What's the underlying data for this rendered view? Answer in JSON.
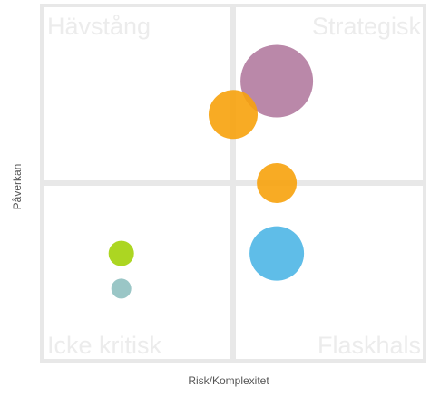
{
  "chart_data": {
    "type": "scatter",
    "subtype": "bubble-quadrant",
    "xlabel": "Risk/Komplexitet",
    "ylabel": "Påverkan",
    "xlim": [
      0,
      100
    ],
    "ylim": [
      0,
      100
    ],
    "grid": false,
    "legend": "none",
    "quadrants": {
      "top_left": "Hävstång",
      "top_right": "Strategisk",
      "bottom_left": "Icke kritisk",
      "bottom_right": "Flaskhals"
    },
    "points": [
      {
        "x": 61.5,
        "y": 79.0,
        "size": 40,
        "color": "#b37ba0"
      },
      {
        "x": 50.0,
        "y": 69.5,
        "size": 27,
        "color": "#f7a20c"
      },
      {
        "x": 61.5,
        "y": 50.0,
        "size": 22,
        "color": "#f7a20c"
      },
      {
        "x": 61.5,
        "y": 30.0,
        "size": 30,
        "color": "#4eb6e6"
      },
      {
        "x": 20.5,
        "y": 30.0,
        "size": 14,
        "color": "#a3d10a"
      },
      {
        "x": 20.5,
        "y": 20.0,
        "size": 11,
        "color": "#8fc0c0"
      }
    ],
    "colors": {
      "frame": "#e8e8e8",
      "panel": "#ffffff",
      "quadrant_text": "#ececec",
      "axis_text": "#555555"
    }
  }
}
